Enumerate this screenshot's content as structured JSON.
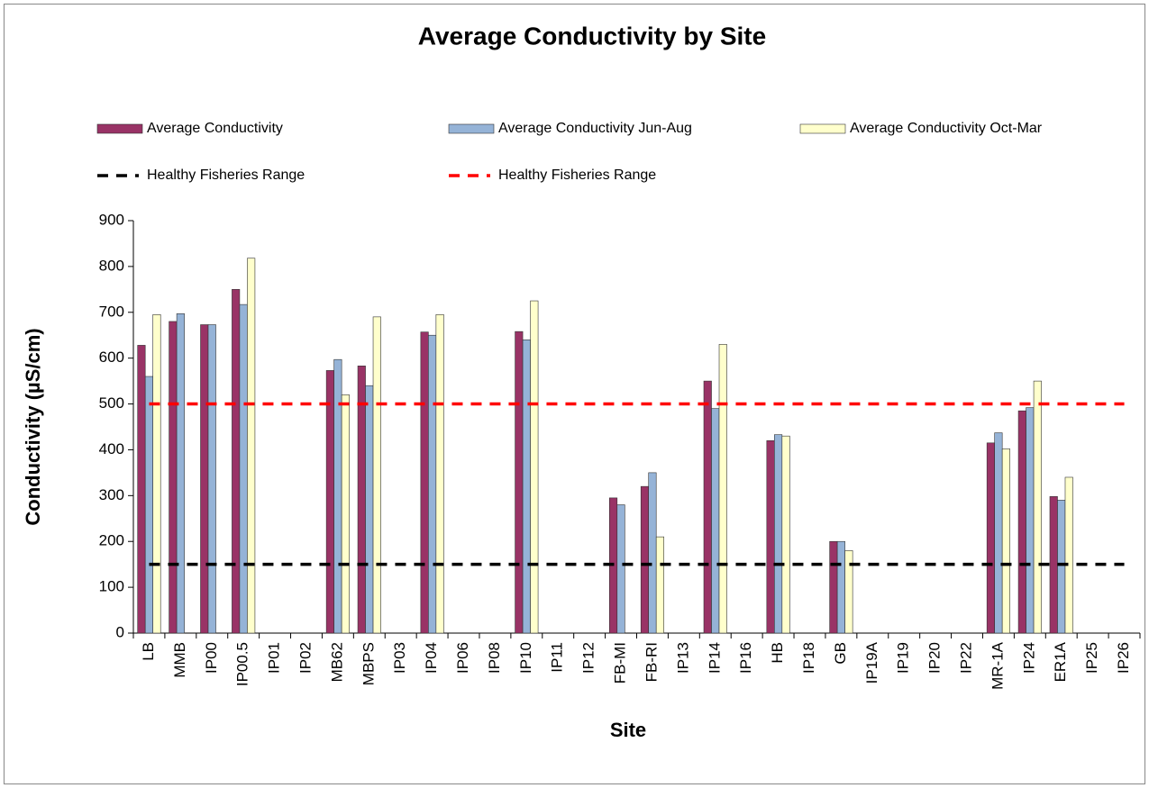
{
  "chart_data": {
    "type": "bar",
    "title": "Average Conductivity by Site",
    "x_label": "Site",
    "y_label": "Conductivity (µS/cm)",
    "categories": [
      "LB",
      "MMB",
      "IP00",
      "IP00.5",
      "IP01",
      "IP02",
      "MB62",
      "MBPS",
      "IP03",
      "IP04",
      "IP06",
      "IP08",
      "IP10",
      "IP11",
      "IP12",
      "FB-MI",
      "FB-RI",
      "IP13",
      "IP14",
      "IP16",
      "HB",
      "IP18",
      "GB",
      "IP19A",
      "IP19",
      "IP20",
      "IP22",
      "MR-1A",
      "IP24",
      "ER1A",
      "IP25",
      "IP26"
    ],
    "series": [
      {
        "name": "Average Conductivity",
        "type": "bar",
        "color": "#993366",
        "values": [
          628,
          680,
          673,
          750,
          null,
          null,
          573,
          583,
          null,
          657,
          null,
          null,
          658,
          null,
          null,
          295,
          320,
          null,
          550,
          null,
          420,
          null,
          200,
          null,
          null,
          null,
          null,
          415,
          485,
          298,
          null,
          null
        ]
      },
      {
        "name": "Average Conductivity Jun-Aug",
        "type": "bar",
        "color": "#95b3d7",
        "values": [
          560,
          697,
          673,
          717,
          null,
          null,
          597,
          540,
          null,
          650,
          null,
          null,
          640,
          null,
          null,
          280,
          350,
          null,
          490,
          null,
          433,
          null,
          200,
          null,
          null,
          null,
          null,
          437,
          492,
          290,
          null,
          null
        ]
      },
      {
        "name": "Average Conductivity Oct-Mar",
        "type": "bar",
        "color": "#ffffcc",
        "values": [
          695,
          null,
          null,
          818,
          null,
          null,
          520,
          690,
          null,
          695,
          null,
          null,
          725,
          null,
          null,
          null,
          210,
          null,
          630,
          null,
          430,
          null,
          180,
          null,
          null,
          null,
          null,
          402,
          550,
          340,
          null,
          null
        ]
      },
      {
        "name": "Healthy Fisheries Range",
        "type": "line",
        "color": "#000000",
        "values": [
          150,
          150,
          150,
          150,
          150,
          150,
          150,
          150,
          150,
          150,
          150,
          150,
          150,
          150,
          150,
          150,
          150,
          150,
          150,
          150,
          150,
          150,
          150,
          150,
          150,
          150,
          150,
          150,
          150,
          150,
          150,
          150
        ]
      },
      {
        "name": "Healthy Fisheries Range",
        "type": "line",
        "color": "#ff0000",
        "values": [
          500,
          500,
          500,
          500,
          500,
          500,
          500,
          500,
          500,
          500,
          500,
          500,
          500,
          500,
          500,
          500,
          500,
          500,
          500,
          500,
          500,
          500,
          500,
          500,
          500,
          500,
          500,
          500,
          500,
          500,
          500,
          500
        ]
      }
    ],
    "ylim": [
      0,
      900
    ],
    "yticks": [
      0,
      100,
      200,
      300,
      400,
      500,
      600,
      700,
      800,
      900
    ]
  }
}
